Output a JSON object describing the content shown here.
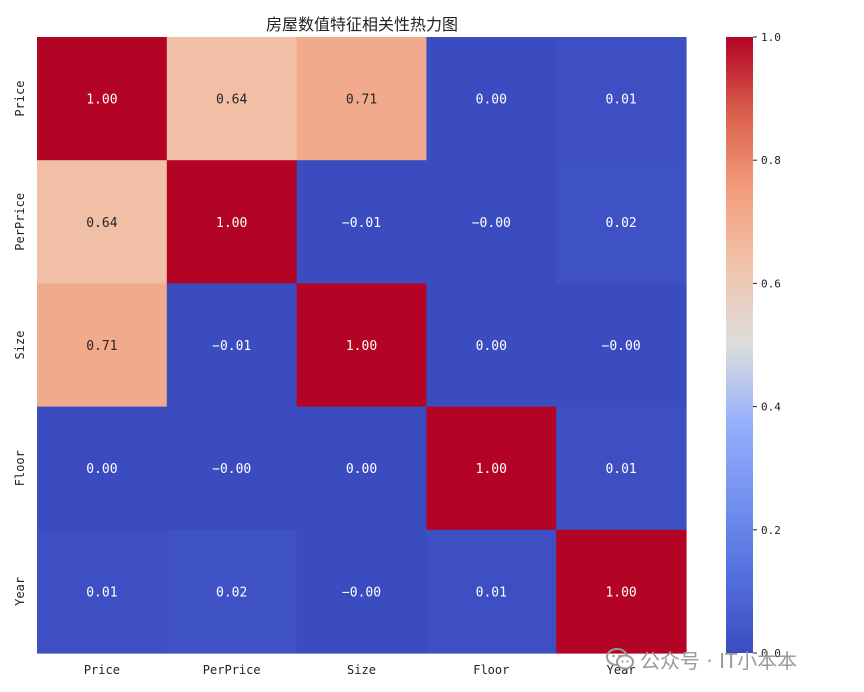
{
  "chart_data": {
    "type": "heatmap",
    "title": "房屋数值特征相关性热力图",
    "x_labels": [
      "Price",
      "PerPrice",
      "Size",
      "Floor",
      "Year"
    ],
    "y_labels": [
      "Price",
      "PerPrice",
      "Size",
      "Floor",
      "Year"
    ],
    "values": [
      [
        1.0,
        0.64,
        0.71,
        0.0,
        0.01
      ],
      [
        0.64,
        1.0,
        -0.01,
        -0.0,
        0.02
      ],
      [
        0.71,
        -0.01,
        1.0,
        0.0,
        -0.0
      ],
      [
        0.0,
        -0.0,
        0.0,
        1.0,
        0.01
      ],
      [
        0.01,
        0.02,
        -0.0,
        0.01,
        1.0
      ]
    ],
    "cell_text": [
      [
        "1.00",
        "0.64",
        "0.71",
        "0.00",
        "0.01"
      ],
      [
        "0.64",
        "1.00",
        "−0.01",
        "−0.00",
        "0.02"
      ],
      [
        "0.71",
        "−0.01",
        "1.00",
        "0.00",
        "−0.00"
      ],
      [
        "0.00",
        "−0.00",
        "0.00",
        "1.00",
        "0.01"
      ],
      [
        "0.01",
        "0.02",
        "−0.00",
        "0.01",
        "1.00"
      ]
    ],
    "colormap": "coolwarm",
    "colorbar": {
      "range": [
        0.0,
        1.0
      ],
      "ticks": [
        0.0,
        0.2,
        0.4,
        0.6,
        0.8,
        1.0
      ],
      "tick_labels": [
        "0.0",
        "0.2",
        "0.4",
        "0.6",
        "0.8",
        "1.0"
      ]
    }
  },
  "watermark": {
    "icon": "wechat-icon",
    "text": "公众号 · IT小本本"
  }
}
